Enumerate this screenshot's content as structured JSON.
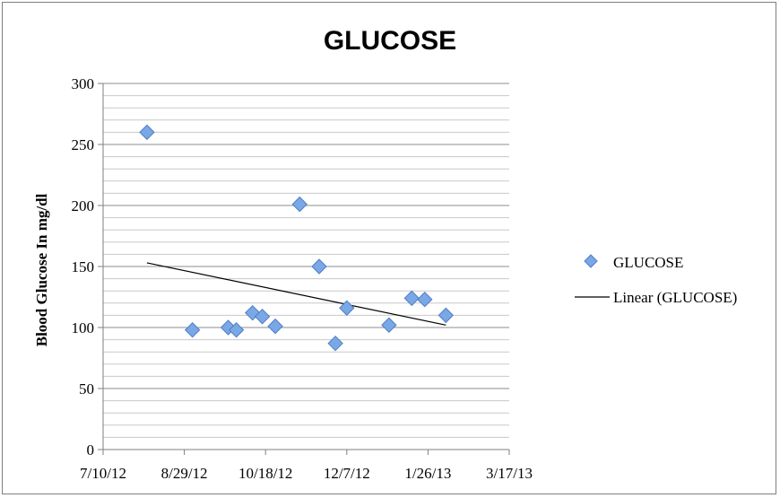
{
  "chart_data": {
    "type": "scatter",
    "title": "GLUCOSE",
    "ylabel": "Blood Glucose In mg/dl",
    "xlabel": "",
    "x_ticks": [
      "7/10/12",
      "8/29/12",
      "10/18/12",
      "12/7/12",
      "1/26/13",
      "3/17/13"
    ],
    "y_ticks": [
      0,
      50,
      100,
      150,
      200,
      250,
      300
    ],
    "xlim": [
      "2012-07-10",
      "2013-03-17"
    ],
    "ylim": [
      0,
      300
    ],
    "grid": true,
    "legend_position": "right",
    "series": [
      {
        "name": "GLUCOSE",
        "marker": "diamond",
        "color": "#7aa7e6",
        "points": [
          {
            "x": "2012-08-06",
            "y": 260
          },
          {
            "x": "2012-09-03",
            "y": 98
          },
          {
            "x": "2012-09-25",
            "y": 100
          },
          {
            "x": "2012-09-30",
            "y": 98
          },
          {
            "x": "2012-10-10",
            "y": 112
          },
          {
            "x": "2012-10-16",
            "y": 109
          },
          {
            "x": "2012-10-24",
            "y": 101
          },
          {
            "x": "2012-11-08",
            "y": 201
          },
          {
            "x": "2012-11-20",
            "y": 150
          },
          {
            "x": "2012-11-30",
            "y": 87
          },
          {
            "x": "2012-12-07",
            "y": 116
          },
          {
            "x": "2013-01-02",
            "y": 102
          },
          {
            "x": "2013-01-16",
            "y": 124
          },
          {
            "x": "2013-01-24",
            "y": 123
          },
          {
            "x": "2013-02-06",
            "y": 110
          }
        ]
      }
    ],
    "trendline": {
      "name": "Linear (GLUCOSE)",
      "color": "#000000",
      "start": {
        "x": "2012-08-06",
        "y": 153
      },
      "end": {
        "x": "2013-02-06",
        "y": 102
      }
    }
  }
}
